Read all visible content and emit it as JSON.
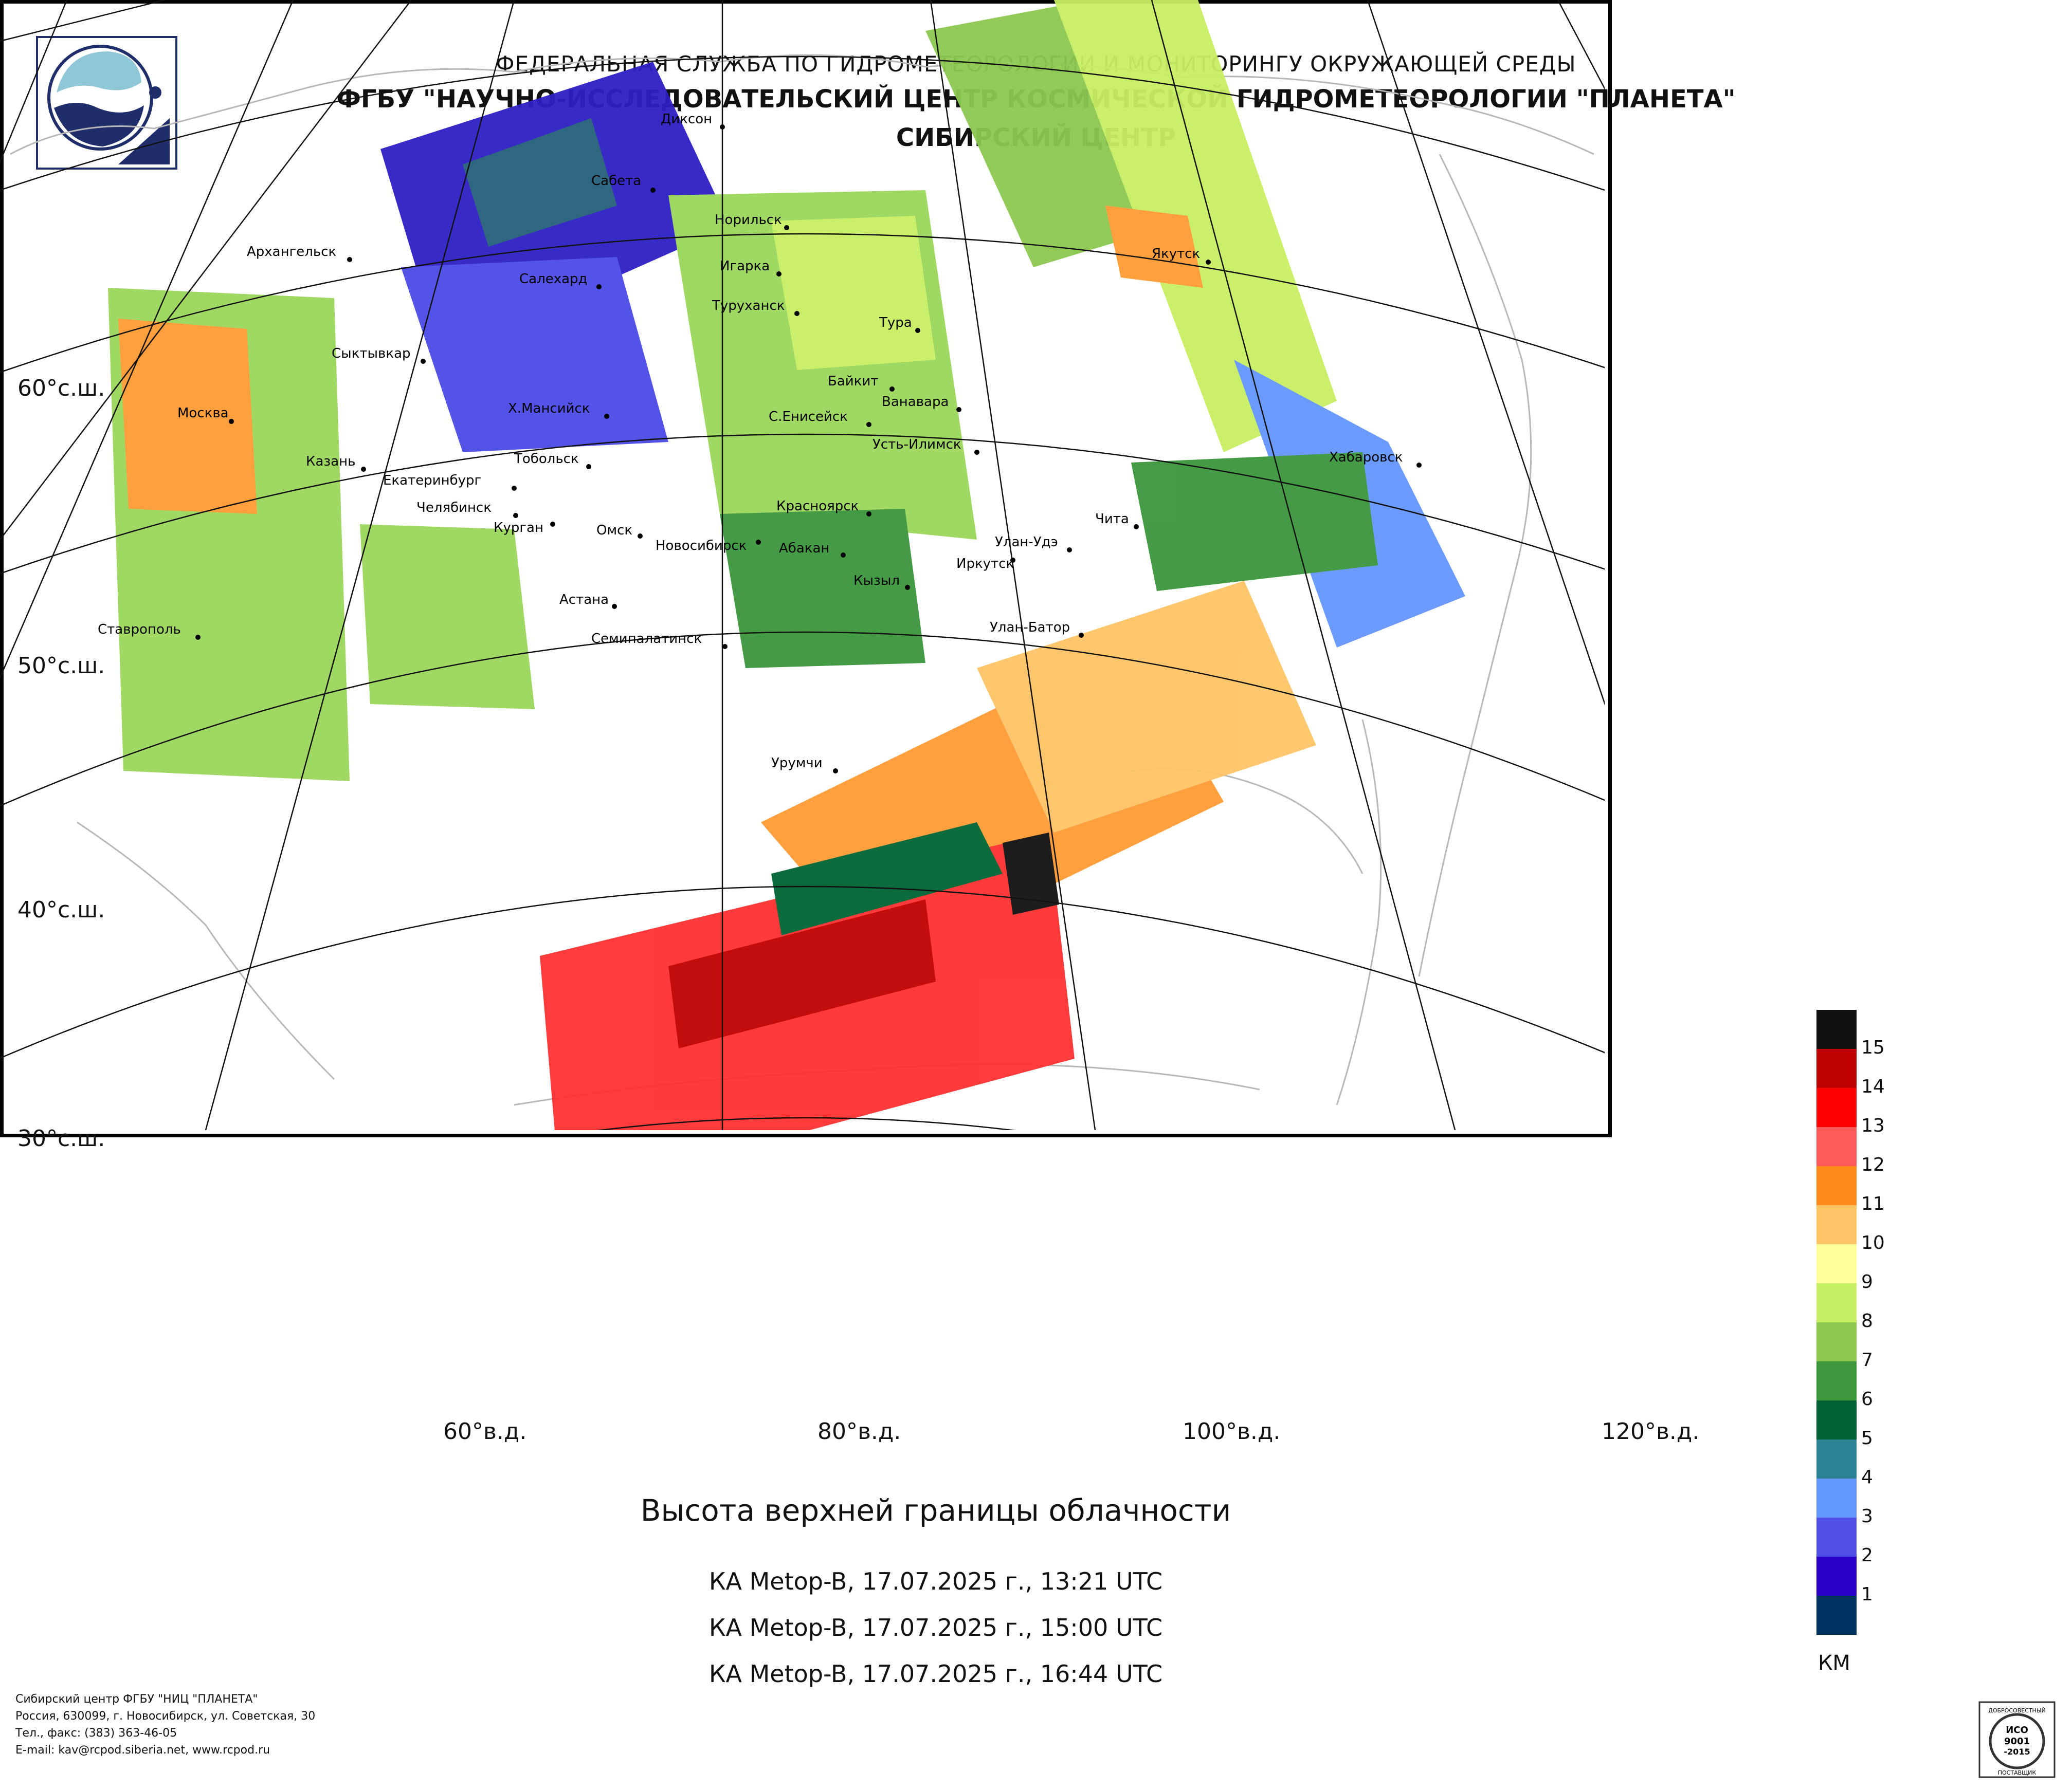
{
  "header": {
    "line1": "ФЕДЕРАЛЬНАЯ СЛУЖБА ПО ГИДРОМЕТЕОРОЛОГИИ И МОНИТОРИНГУ ОКРУЖАЮЩЕЙ СРЕДЫ",
    "line2": "ФГБУ \"НАУЧНО-ИССЛЕДОВАТЕЛЬСКИЙ ЦЕНТР КОСМИЧЕСКОЙ ГИДРОМЕТЕОРОЛОГИИ \"ПЛАНЕТА\"",
    "line3": "СИБИРСКИЙ ЦЕНТР"
  },
  "map": {
    "latitude_labels": [
      "60°с.ш.",
      "50°с.ш.",
      "40°с.ш.",
      "30°с.ш."
    ],
    "longitude_labels": [
      "60°в.д.",
      "80°в.д.",
      "100°в.д.",
      "120°в.д."
    ],
    "cities": [
      "Диксон",
      "Сабета",
      "Норильск",
      "Архангельск",
      "Салехард",
      "Игарка",
      "Якутск",
      "Туруханск",
      "Тура",
      "Сыктывкар",
      "Байкит",
      "Ванавара",
      "Москва",
      "Х.Мансийск",
      "С.Енисейск",
      "Усть-Илимск",
      "Казань",
      "Тобольск",
      "Хабаровск",
      "Екатеринбург",
      "Красноярск",
      "Челябинск",
      "Курган",
      "Омск",
      "Чита",
      "Новосибирск",
      "Абакан",
      "Улан-Удэ",
      "Иркутск",
      "Кызыл",
      "Астана",
      "Ставрополь",
      "Семипалатинск",
      "Улан-Батор",
      "Урумчи"
    ]
  },
  "product_title": "Высота верхней границы облачности",
  "passes": [
    "КА Metop-B, 17.07.2025 г., 13:21 UTC",
    "КА Metop-B, 17.07.2025 г., 15:00 UTC",
    "КА Metop-B, 17.07.2025 г., 16:44 UTC"
  ],
  "legend": {
    "unit": "КМ",
    "levels": [
      "15",
      "14",
      "13",
      "12",
      "11",
      "10",
      "9",
      "8",
      "7",
      "6",
      "5",
      "4",
      "3",
      "2",
      "1"
    ],
    "colors": [
      "#111111",
      "#c00000",
      "#ff0000",
      "#ff5a5a",
      "#ff8c1a",
      "#ffc466",
      "#ffff99",
      "#c8f064",
      "#8cc850",
      "#3c963c",
      "#006432",
      "#2d8296",
      "#6496ff",
      "#5050e6",
      "#2800c8",
      "#003264"
    ]
  },
  "footer": {
    "line1": "Сибирский центр ФГБУ \"НИЦ \"ПЛАНЕТА\"",
    "line2": "Россия, 630099, г. Новосибирск, ул. Советская, 30",
    "line3": "Тел., факс: (383) 363-46-05",
    "line4": "E-mail: kav@rcpod.siberia.net, www.rcpod.ru"
  },
  "certificate": {
    "top_text": "ДОБРОСОВЕСТНЫЙ",
    "iso": "ИСО",
    "number": "9001",
    "year": "-2015",
    "bottom_text": "ПОСТАВЩИК"
  }
}
